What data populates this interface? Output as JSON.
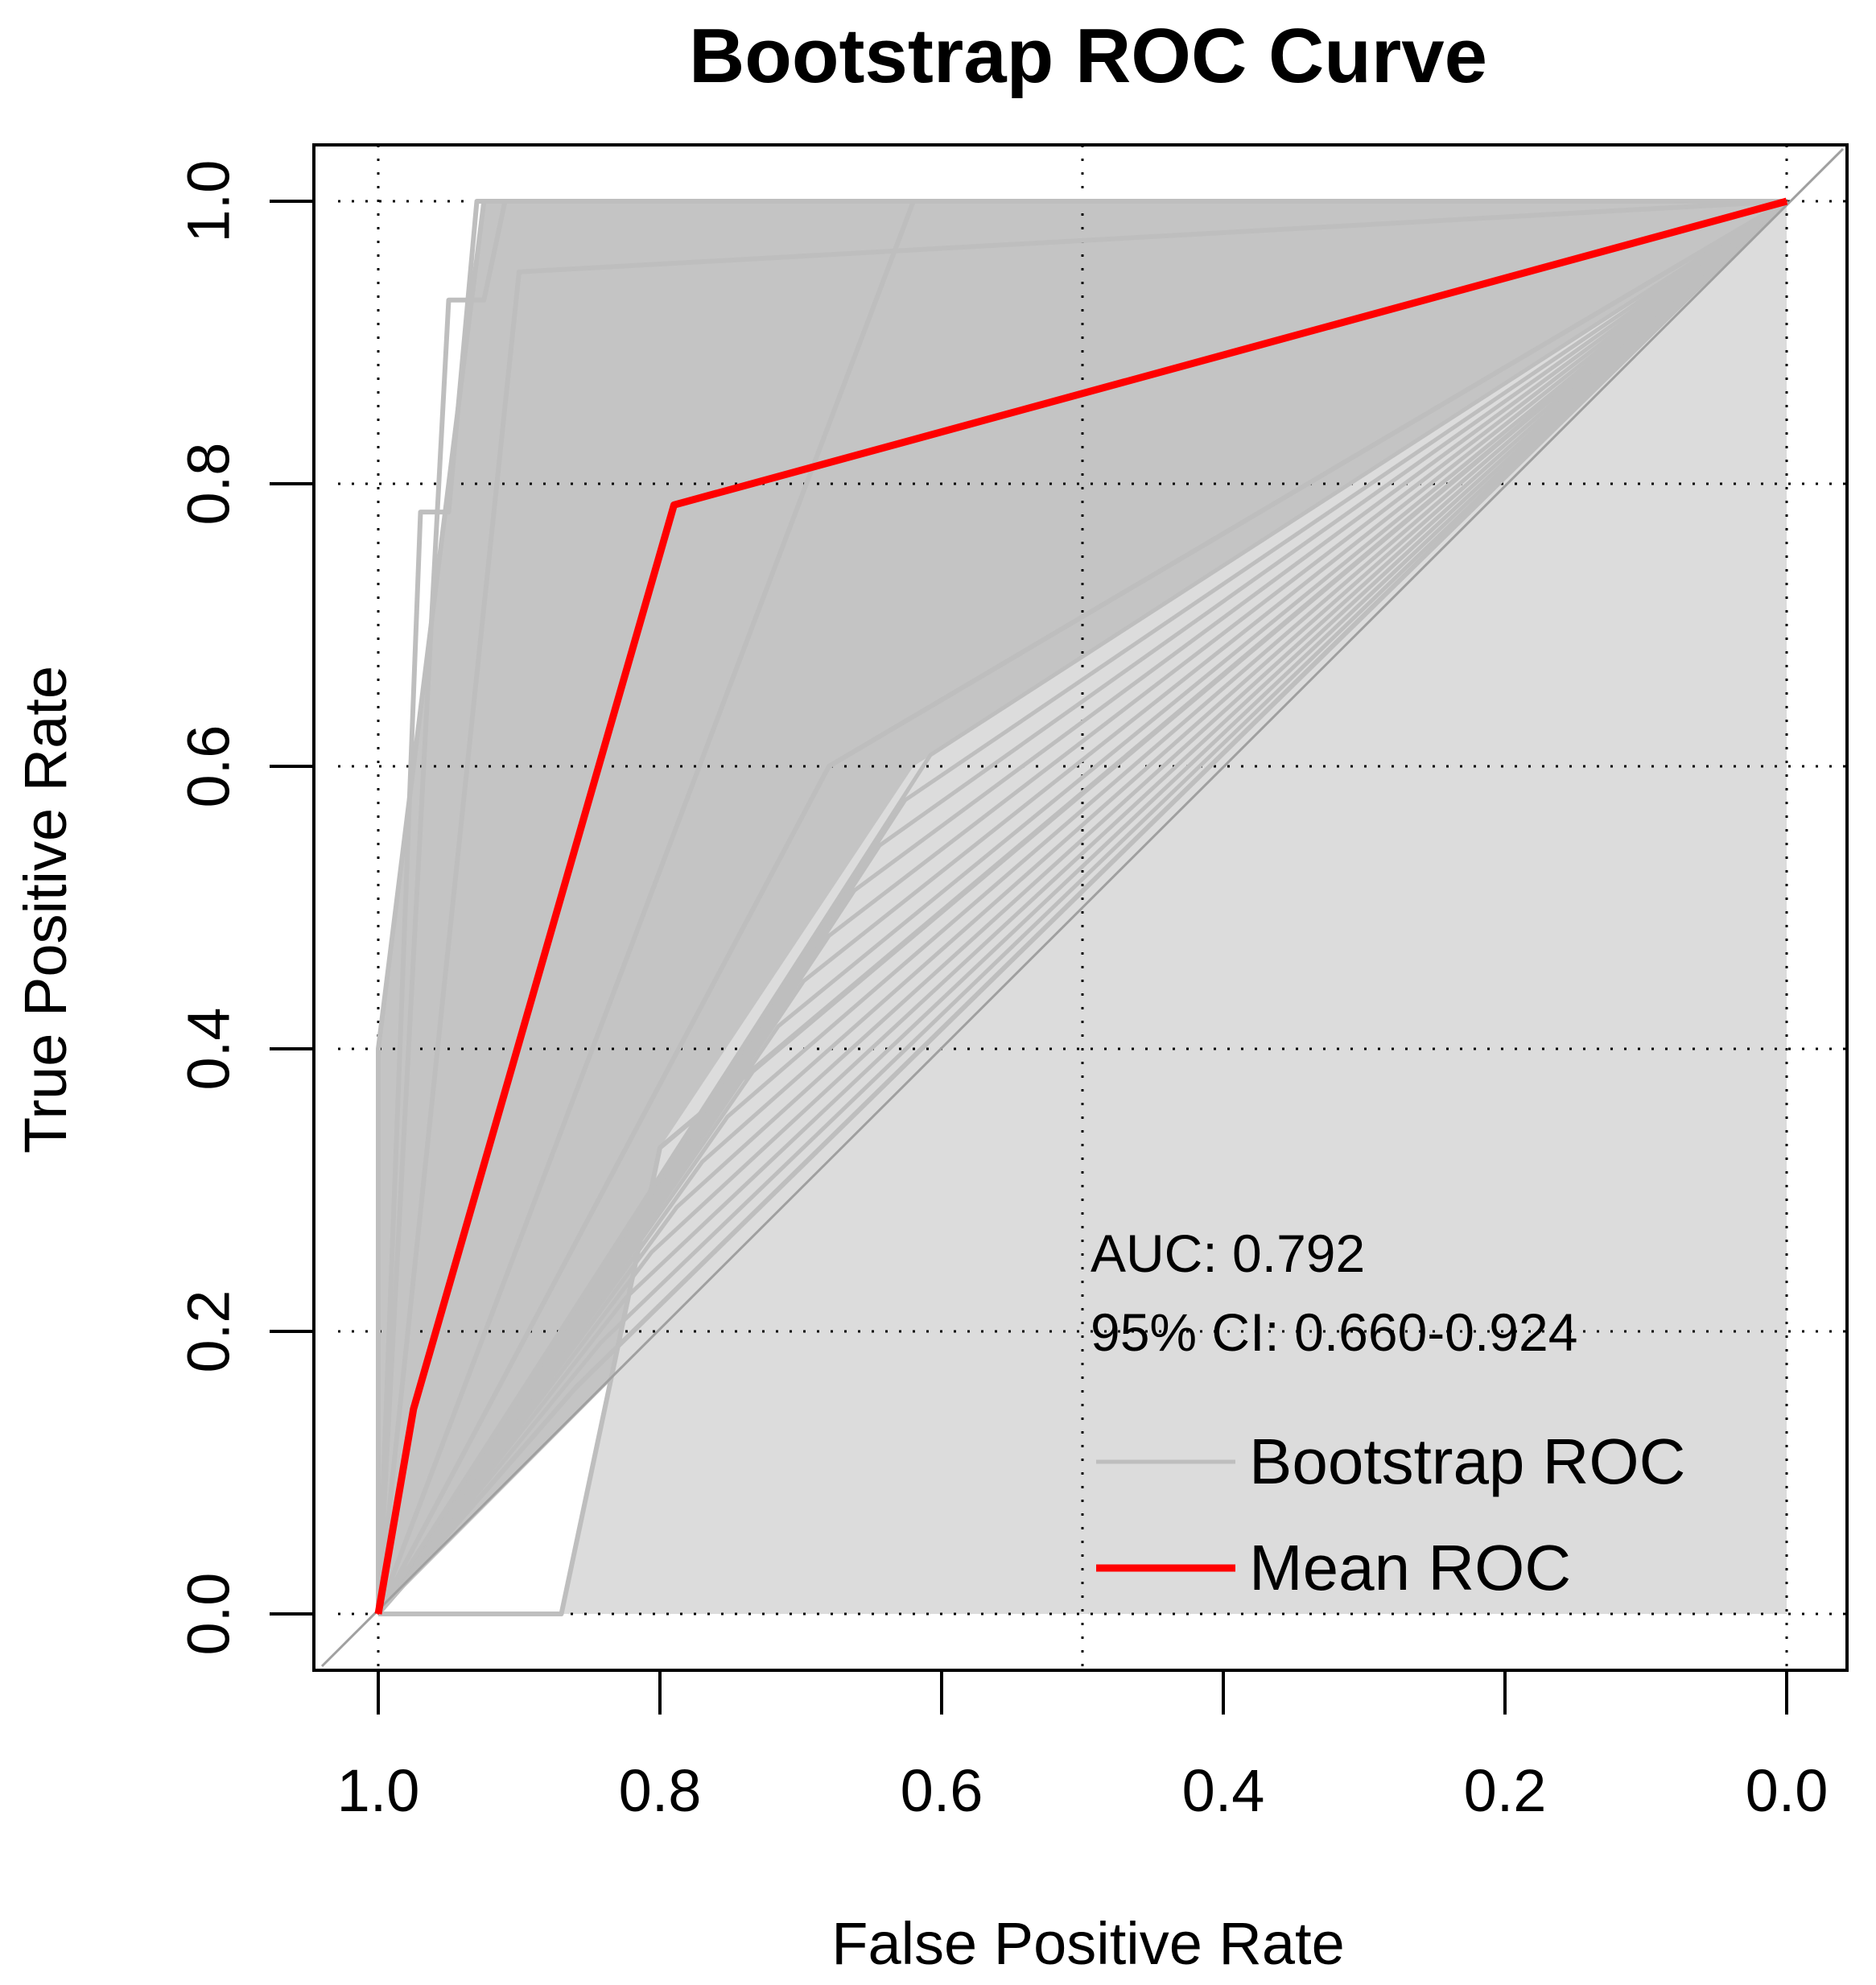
{
  "chart_data": {
    "type": "line",
    "title": "Bootstrap ROC Curve",
    "xlabel": "False Positive Rate",
    "ylabel": "True Positive Rate",
    "x_axis_reversed": true,
    "xlim": [
      1.0,
      0.0
    ],
    "ylim": [
      0.0,
      1.0
    ],
    "x_ticks": [
      "1.0",
      "0.8",
      "0.6",
      "0.4",
      "0.2",
      "0.0"
    ],
    "x_tick_values": [
      1.0,
      0.8,
      0.6,
      0.4,
      0.2,
      0.0
    ],
    "y_ticks": [
      "0.0",
      "0.2",
      "0.4",
      "0.6",
      "0.8",
      "1.0"
    ],
    "y_tick_values": [
      0.0,
      0.2,
      0.4,
      0.6,
      0.8,
      1.0
    ],
    "grid": "dotted",
    "diagonal_reference": true,
    "annotations": {
      "auc": "AUC: 0.792",
      "ci": "95% CI: 0.660-0.924"
    },
    "legend": {
      "position": "bottom-right",
      "entries": [
        {
          "label": "Bootstrap ROC",
          "color": "#bebebe"
        },
        {
          "label": "Mean ROC",
          "color": "#ff0000"
        }
      ]
    },
    "series": [
      {
        "name": "Mean ROC",
        "color": "#ff0000",
        "points": [
          [
            1.0,
            0.0
          ],
          [
            0.975,
            0.145
          ],
          [
            0.79,
            0.785
          ],
          [
            0.0,
            1.0
          ]
        ]
      }
    ],
    "bootstrap": {
      "color": "#bebebe",
      "shaded_color": "#c4c4c4",
      "inner_area_color": "#dcdcdc",
      "curves": [
        [
          [
            1.0,
            0.0
          ],
          [
            1.0,
            0.4
          ],
          [
            0.925,
            1.0
          ],
          [
            0.0,
            1.0
          ]
        ],
        [
          [
            1.0,
            0.0
          ],
          [
            0.95,
            0.93
          ],
          [
            0.925,
            0.93
          ],
          [
            0.91,
            1.0
          ],
          [
            0.0,
            1.0
          ]
        ],
        [
          [
            1.0,
            0.0
          ],
          [
            0.97,
            0.78
          ],
          [
            0.95,
            0.78
          ],
          [
            0.93,
            1.0
          ],
          [
            0.0,
            1.0
          ]
        ],
        [
          [
            1.0,
            0.0
          ],
          [
            0.87,
            0.0
          ],
          [
            0.8,
            0.33
          ],
          [
            0.0,
            1.0
          ]
        ],
        [
          [
            1.0,
            0.0
          ],
          [
            0.86,
            0.16
          ],
          [
            0.0,
            1.0
          ]
        ],
        [
          [
            1.0,
            0.0
          ],
          [
            0.68,
            0.6
          ],
          [
            0.0,
            1.0
          ]
        ],
        [
          [
            1.0,
            0.0
          ],
          [
            0.62,
            1.0
          ],
          [
            0.0,
            1.0
          ]
        ],
        [
          [
            1.0,
            0.0
          ],
          [
            0.9,
            0.95
          ],
          [
            0.0,
            1.0
          ]
        ]
      ]
    }
  }
}
